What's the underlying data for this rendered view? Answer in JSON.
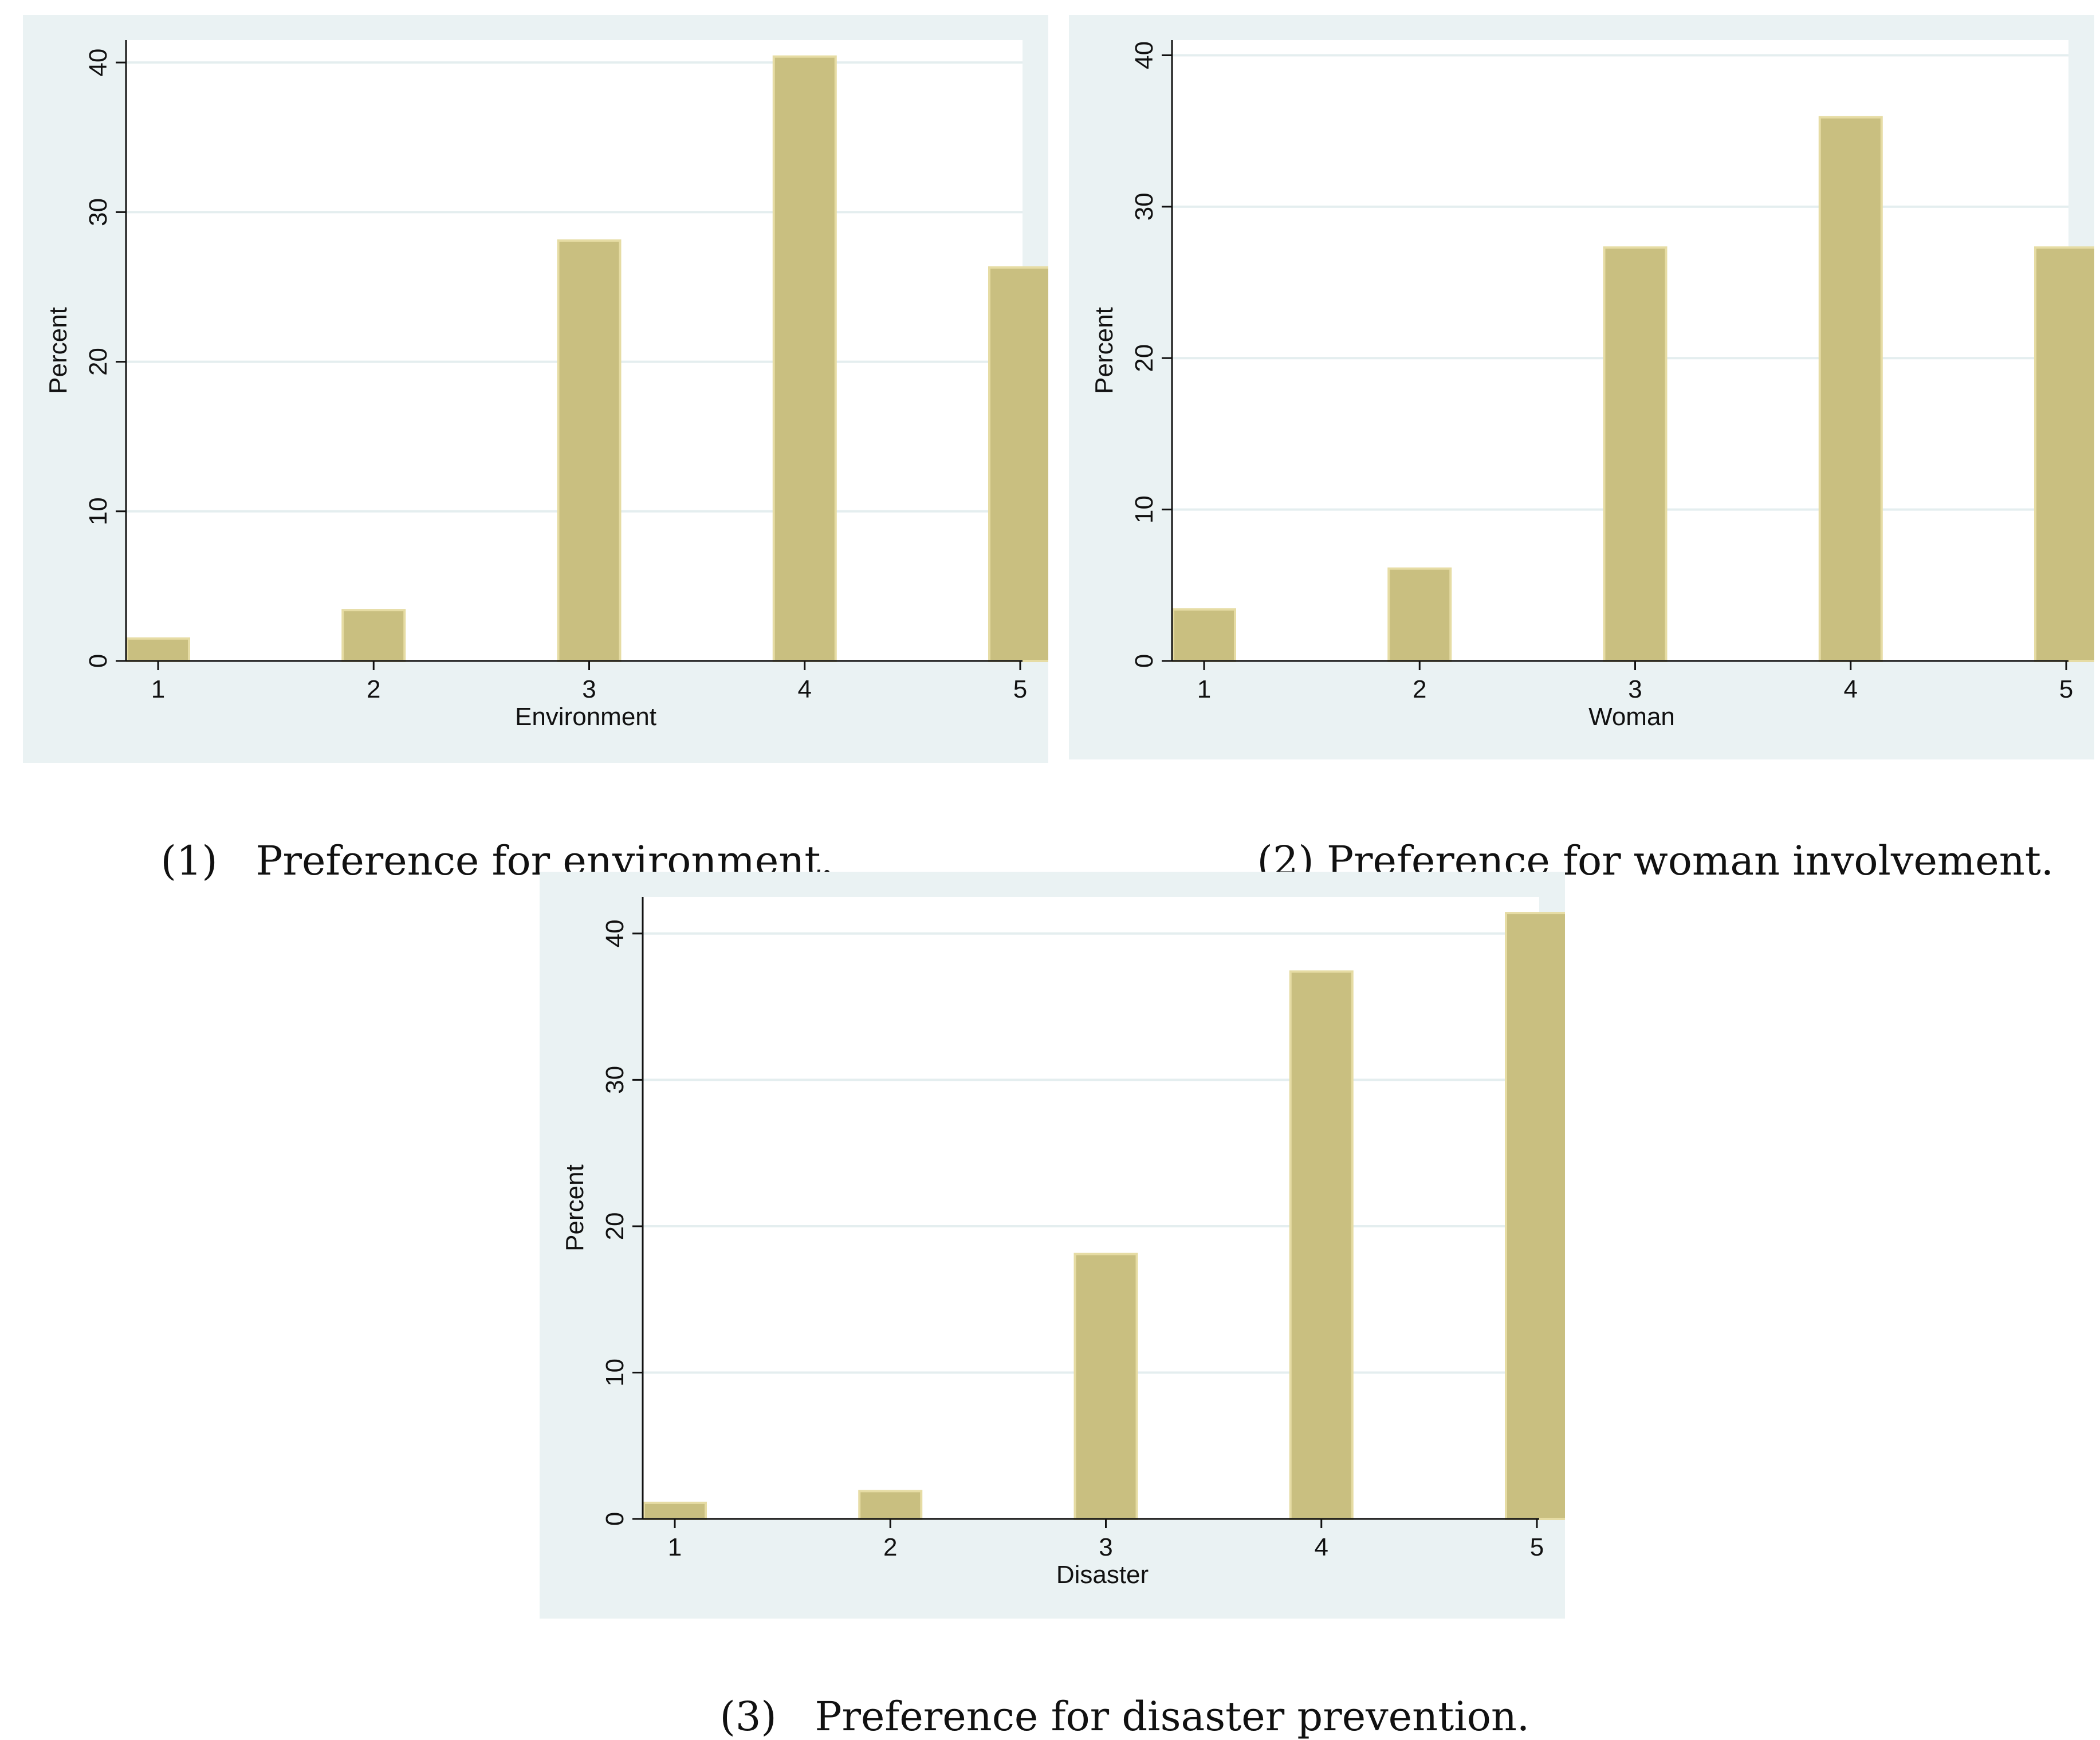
{
  "colors": {
    "panel_bg": "#eaf2f3",
    "plot_bg": "#ffffff",
    "bar_fill": "#c9bf80",
    "bar_edge": "#e6dca4",
    "grid": "#e4eeef",
    "axis": "#111111"
  },
  "chart_data": [
    {
      "type": "bar",
      "caption_number": "(1)",
      "caption_text": "Preference for environment.",
      "xlabel": "Environment",
      "ylabel": "Percent",
      "categories": [
        "1",
        "2",
        "3",
        "4",
        "5"
      ],
      "values": [
        1.5,
        3.4,
        28.1,
        40.4,
        26.3
      ],
      "y_ticks": [
        0,
        10,
        20,
        30,
        40
      ],
      "y_tick_labels": [
        "0",
        "10",
        "20",
        "30",
        "40"
      ],
      "ylim": [
        0,
        41.5
      ],
      "grid": true
    },
    {
      "type": "bar",
      "caption_number": "(2)",
      "caption_text": "Preference for woman involvement.",
      "xlabel": "Woman",
      "ylabel": "Percent",
      "categories": [
        "1",
        "2",
        "3",
        "4",
        "5"
      ],
      "values": [
        3.4,
        6.1,
        27.3,
        35.9,
        27.3
      ],
      "y_ticks": [
        0,
        10,
        20,
        30,
        40
      ],
      "y_tick_labels": [
        "0",
        "10",
        "20",
        "30",
        "40"
      ],
      "ylim": [
        0,
        41
      ],
      "grid": true
    },
    {
      "type": "bar",
      "caption_number": "(3)",
      "caption_text": "Preference for disaster prevention.",
      "xlabel": "Disaster",
      "ylabel": "Percent",
      "categories": [
        "1",
        "2",
        "3",
        "4",
        "5"
      ],
      "values": [
        1.1,
        1.9,
        18.1,
        37.4,
        41.4
      ],
      "y_ticks": [
        0,
        10,
        20,
        30,
        40
      ],
      "y_tick_labels": [
        "0",
        "10",
        "20",
        "30",
        "40"
      ],
      "ylim": [
        0,
        42.5
      ],
      "grid": true
    }
  ]
}
